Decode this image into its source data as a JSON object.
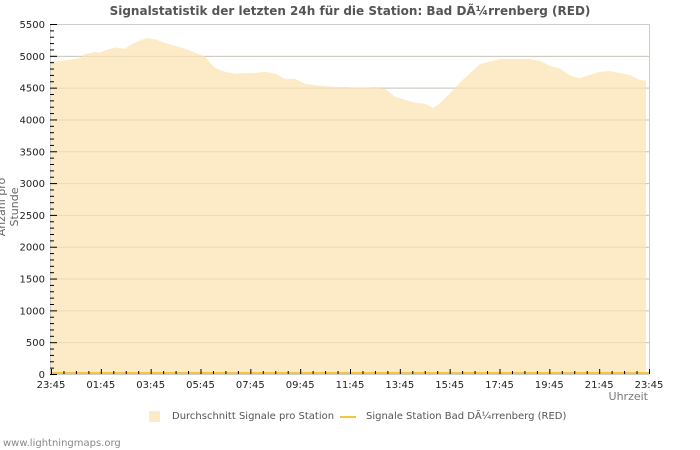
{
  "chart_data": {
    "type": "area",
    "title": "Signalstatistik der letzten 24h für die Station: Bad DÃ¼rrenberg (RED)",
    "xlabel": "Uhrzeit",
    "ylabel": "Anzahl pro Stunde",
    "ylim": [
      0,
      5500
    ],
    "yticks": [
      0,
      500,
      1000,
      1500,
      2000,
      2500,
      3000,
      3500,
      4000,
      4500,
      5000,
      5500
    ],
    "xticks": [
      "23:45",
      "01:45",
      "03:45",
      "05:45",
      "07:45",
      "09:45",
      "11:45",
      "13:45",
      "15:45",
      "17:45",
      "19:45",
      "21:45",
      "23:45"
    ],
    "grid": true,
    "legend_position": "bottom",
    "series": [
      {
        "name": "Durchschnitt Signale pro Station",
        "style": "area",
        "color": "#fdebc8",
        "x_fraction": [
          0,
          0.015,
          0.032,
          0.049,
          0.057,
          0.074,
          0.082,
          0.091,
          0.107,
          0.124,
          0.132,
          0.149,
          0.161,
          0.174,
          0.191,
          0.207,
          0.224,
          0.241,
          0.258,
          0.266,
          0.274,
          0.291,
          0.308,
          0.324,
          0.341,
          0.358,
          0.375,
          0.391,
          0.408,
          0.425,
          0.45,
          0.475,
          0.492,
          0.508,
          0.525,
          0.542,
          0.559,
          0.575,
          0.592,
          0.609,
          0.625,
          0.639,
          0.651,
          0.668,
          0.684,
          0.701,
          0.717,
          0.734,
          0.751,
          0.768,
          0.784,
          0.801,
          0.818,
          0.834,
          0.851,
          0.868,
          0.884,
          0.901,
          0.918,
          0.934,
          0.951,
          0.968,
          0.985,
          0.995
        ],
        "values": [
          4920,
          4920,
          4940,
          4970,
          5030,
          5060,
          5050,
          5090,
          5130,
          5110,
          5170,
          5240,
          5280,
          5260,
          5200,
          5160,
          5110,
          5050,
          4990,
          4890,
          4810,
          4750,
          4720,
          4730,
          4730,
          4750,
          4720,
          4640,
          4640,
          4560,
          4530,
          4510,
          4510,
          4500,
          4500,
          4510,
          4480,
          4360,
          4310,
          4260,
          4250,
          4180,
          4260,
          4420,
          4580,
          4730,
          4870,
          4910,
          4950,
          4950,
          4950,
          4950,
          4920,
          4840,
          4800,
          4690,
          4650,
          4700,
          4750,
          4760,
          4730,
          4700,
          4620,
          4610
        ]
      },
      {
        "name": "Signale Station Bad DÃ¼rrenberg (RED)",
        "style": "line",
        "color": "#f5c542",
        "constant_value": 0
      }
    ]
  },
  "footer": {
    "site": "www.lightningmaps.org"
  }
}
